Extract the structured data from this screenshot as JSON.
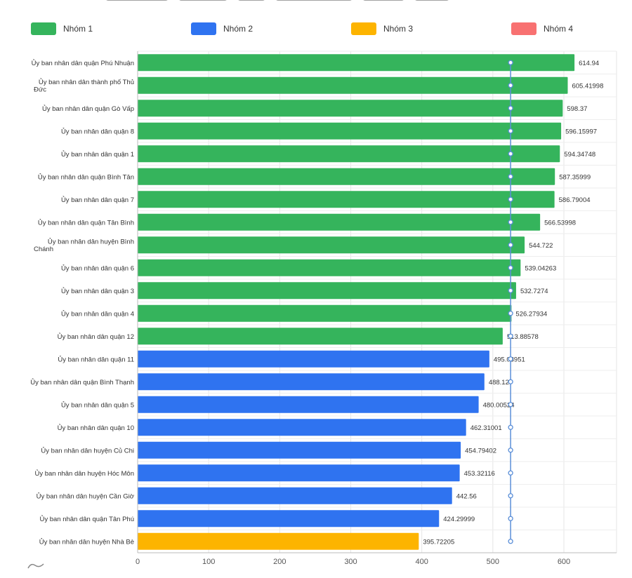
{
  "chart_data": {
    "type": "bar",
    "orientation": "horizontal",
    "title": "",
    "xlabel": "",
    "ylabel": "",
    "xlim": [
      0,
      670
    ],
    "xticks": [
      0,
      100,
      200,
      300,
      400,
      500,
      600
    ],
    "grid": true,
    "legend_position": "top",
    "reference_line": {
      "value": 525,
      "color": "#5b8fd8"
    },
    "legend": [
      {
        "name": "Nhóm 1",
        "color": "#35b45c"
      },
      {
        "name": "Nhóm 2",
        "color": "#2f73f0"
      },
      {
        "name": "Nhóm 3",
        "color": "#fdb400"
      },
      {
        "name": "Nhóm 4",
        "color": "#f87171"
      }
    ],
    "categories": [
      "Ủy ban nhân dân quận Phú Nhuận",
      "Ủy ban nhân dân thành phố Thủ Đức",
      "Ủy ban nhân dân quận Gò Vấp",
      "Ủy ban nhân dân quận 8",
      "Ủy ban nhân dân quận 1",
      "Ủy ban nhân dân quận Bình Tân",
      "Ủy ban nhân dân quận 7",
      "Ủy ban nhân dân quận Tân Bình",
      "Ủy ban nhân dân huyện Bình Chánh",
      "Ủy ban nhân dân quận 6",
      "Ủy ban nhân dân quận 3",
      "Ủy ban nhân dân quận 4",
      "Ủy ban nhân dân quận 12",
      "Ủy ban nhân dân quận 11",
      "Ủy ban nhân dân quận Bình Thạnh",
      "Ủy ban nhân dân quận 5",
      "Ủy ban nhân dân quận 10",
      "Ủy ban nhân dân huyện Củ Chi",
      "Ủy ban nhân dân huyện Hóc Môn",
      "Ủy ban nhân dân huyện Cần Giờ",
      "Ủy ban nhân dân quận Tân Phú",
      "Ủy ban nhân dân huyện Nhà Bè"
    ],
    "value_labels": [
      "614.94",
      "605.41998",
      "598.37",
      "596.15997",
      "594.34748",
      "587.35999",
      "586.79004",
      "566.53998",
      "544.722",
      "539.04263",
      "532.7274",
      "526.27934",
      "513.88578",
      "495.08951",
      "488.12",
      "480.00524",
      "462.31001",
      "454.79402",
      "453.32116",
      "442.56",
      "424.29999",
      "395.72205"
    ],
    "values": [
      614.94,
      605.41998,
      598.37,
      596.15997,
      594.34748,
      587.35999,
      586.79004,
      566.53998,
      544.722,
      539.04263,
      532.7274,
      526.27934,
      513.88578,
      495.08951,
      488.12,
      480.00524,
      462.31001,
      454.79402,
      453.32116,
      442.56,
      424.29999,
      395.72205
    ],
    "groups": [
      "Nhóm 1",
      "Nhóm 1",
      "Nhóm 1",
      "Nhóm 1",
      "Nhóm 1",
      "Nhóm 1",
      "Nhóm 1",
      "Nhóm 1",
      "Nhóm 1",
      "Nhóm 1",
      "Nhóm 1",
      "Nhóm 1",
      "Nhóm 1",
      "Nhóm 2",
      "Nhóm 2",
      "Nhóm 2",
      "Nhóm 2",
      "Nhóm 2",
      "Nhóm 2",
      "Nhóm 2",
      "Nhóm 2",
      "Nhóm 3"
    ]
  }
}
